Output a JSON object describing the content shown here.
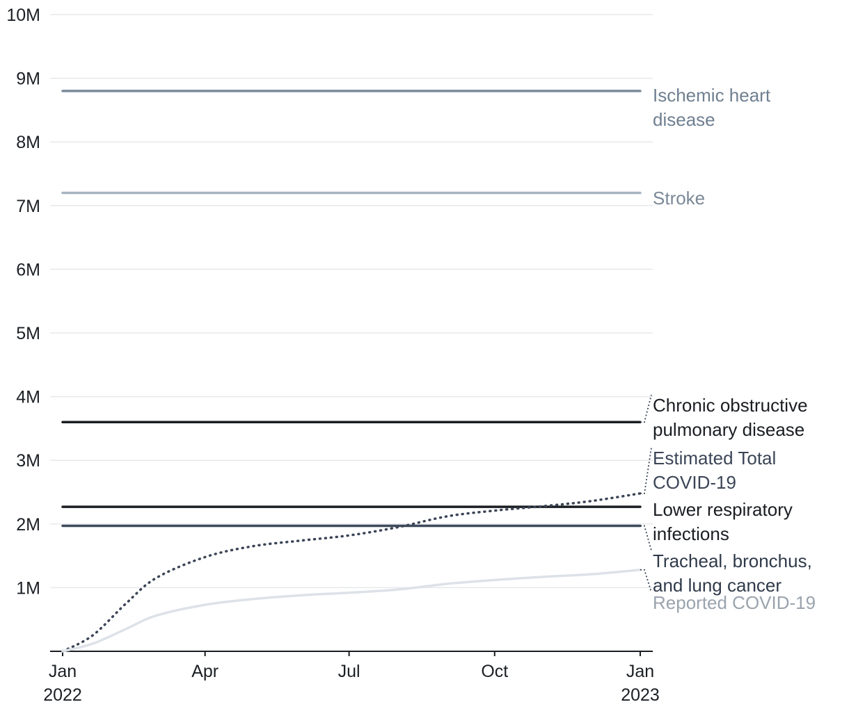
{
  "chart_data": {
    "type": "line",
    "title": "",
    "xlabel": "",
    "ylabel": "",
    "ylim": [
      0,
      10000000
    ],
    "xlim": [
      "2022-01-01",
      "2023-01-01"
    ],
    "grid": true,
    "legend": "direct labels at right end of lines",
    "y_ticks": [
      {
        "value": 1000000,
        "label": "1M"
      },
      {
        "value": 2000000,
        "label": "2M"
      },
      {
        "value": 3000000,
        "label": "3M"
      },
      {
        "value": 4000000,
        "label": "4M"
      },
      {
        "value": 5000000,
        "label": "5M"
      },
      {
        "value": 6000000,
        "label": "6M"
      },
      {
        "value": 7000000,
        "label": "7M"
      },
      {
        "value": 8000000,
        "label": "8M"
      },
      {
        "value": 9000000,
        "label": "9M"
      },
      {
        "value": 10000000,
        "label": "10M"
      }
    ],
    "x_ticks": [
      {
        "date": "2022-01-01",
        "label": "Jan",
        "label2": "2022"
      },
      {
        "date": "2022-04-01",
        "label": "Apr",
        "label2": ""
      },
      {
        "date": "2022-07-01",
        "label": "Jul",
        "label2": ""
      },
      {
        "date": "2022-10-01",
        "label": "Oct",
        "label2": ""
      },
      {
        "date": "2023-01-01",
        "label": "Jan",
        "label2": "2023"
      }
    ],
    "series": [
      {
        "name": "Ischemic heart disease",
        "label_lines": [
          "Ischemic heart",
          "disease"
        ],
        "color": "#7b8a9a",
        "label_color": "#6f7f90",
        "style": "solid",
        "x": [
          "2022-01-01",
          "2023-01-01"
        ],
        "y": [
          8800000,
          8800000
        ]
      },
      {
        "name": "Stroke",
        "label_lines": [
          "Stroke"
        ],
        "color": "#a7b4c2",
        "label_color": "#7b8896",
        "style": "solid",
        "x": [
          "2022-01-01",
          "2023-01-01"
        ],
        "y": [
          7200000,
          7200000
        ]
      },
      {
        "name": "Chronic obstructive pulmonary disease",
        "label_lines": [
          "Chronic obstructive",
          "pulmonary disease"
        ],
        "color": "#1a1d22",
        "label_color": "#1a1d22",
        "style": "solid",
        "x": [
          "2022-01-01",
          "2023-01-01"
        ],
        "y": [
          3600000,
          3600000
        ]
      },
      {
        "name": "Lower respiratory infections",
        "label_lines": [
          "Lower respiratory",
          "infections"
        ],
        "color": "#1a1d22",
        "label_color": "#1a1d22",
        "style": "solid",
        "x": [
          "2022-01-01",
          "2023-01-01"
        ],
        "y": [
          2270000,
          2270000
        ]
      },
      {
        "name": "Tracheal, bronchus, and lung cancer",
        "label_lines": [
          "Tracheal, bronchus,",
          "and lung cancer"
        ],
        "color": "#3e4a5c",
        "label_color": "#2f3a4a",
        "style": "solid",
        "x": [
          "2022-01-01",
          "2023-01-01"
        ],
        "y": [
          1970000,
          1970000
        ]
      },
      {
        "name": "Estimated Total COVID-19",
        "label_lines": [
          "Estimated Total",
          "COVID-19"
        ],
        "color": "#3b4556",
        "label_color": "#3b4556",
        "style": "dotted",
        "x": [
          "2022-01-01",
          "2022-01-20",
          "2022-02-10",
          "2022-03-01",
          "2022-04-01",
          "2022-05-01",
          "2022-06-01",
          "2022-07-01",
          "2022-08-01",
          "2022-09-01",
          "2022-10-01",
          "2022-11-01",
          "2022-12-01",
          "2023-01-01"
        ],
        "y": [
          0,
          250000,
          750000,
          1150000,
          1480000,
          1650000,
          1740000,
          1820000,
          1950000,
          2120000,
          2210000,
          2280000,
          2360000,
          2480000
        ]
      },
      {
        "name": "Reported COVID-19",
        "label_lines": [
          "Reported COVID-19"
        ],
        "color": "#dde2e8",
        "label_color": "#9aa3ad",
        "style": "solid",
        "x": [
          "2022-01-01",
          "2022-01-20",
          "2022-02-10",
          "2022-03-01",
          "2022-04-01",
          "2022-05-01",
          "2022-06-01",
          "2022-07-01",
          "2022-08-01",
          "2022-09-01",
          "2022-10-01",
          "2022-11-01",
          "2022-12-01",
          "2023-01-01"
        ],
        "y": [
          0,
          120000,
          350000,
          560000,
          730000,
          820000,
          880000,
          920000,
          970000,
          1060000,
          1120000,
          1170000,
          1210000,
          1280000
        ]
      }
    ]
  }
}
